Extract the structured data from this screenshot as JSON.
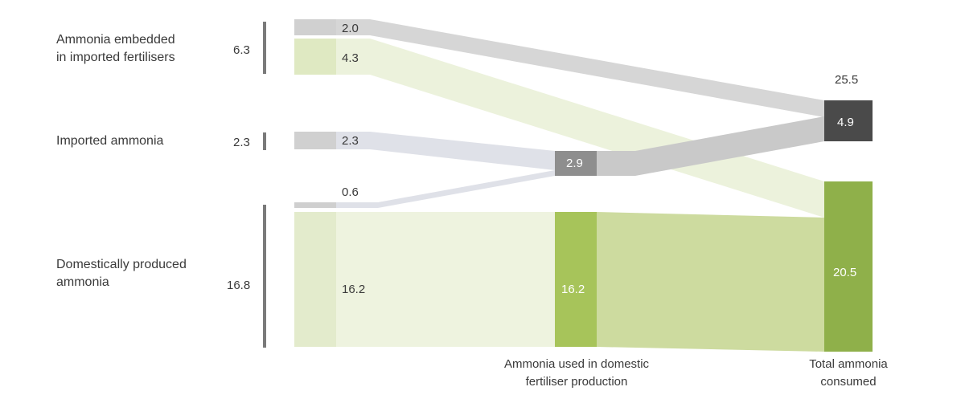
{
  "chart_data": {
    "type": "sankey",
    "colors": {
      "grey_flow": "#cfcfcf",
      "grey_band": "#dadde6",
      "green_flow": "#e6efcf",
      "green_band": "#d9e7b0",
      "green_node": "#a7c45a",
      "green_node_dark": "#8fb04a",
      "dark_node": "#4a4a4a",
      "mid_node": "#8e8e8e",
      "bracket": "#7a7a7a"
    },
    "sources": [
      {
        "line1": "Ammonia embedded",
        "line2": "in imported fertilisers",
        "total": "6.3",
        "total_value": 6.3
      },
      {
        "line1": "Imported ammonia",
        "line2": "",
        "total": "2.3",
        "total_value": 2.3
      },
      {
        "line1": "Domestically produced",
        "line2": "ammonia",
        "total": "16.8",
        "total_value": 16.8
      }
    ],
    "flows": [
      {
        "label": "2.0",
        "value": 2.0,
        "from": "Ammonia embedded in imported fertilisers",
        "to": "Total ammonia consumed"
      },
      {
        "label": "4.3",
        "value": 4.3,
        "from": "Ammonia embedded in imported fertilisers",
        "to": "Total ammonia consumed"
      },
      {
        "label": "2.3",
        "value": 2.3,
        "from": "Imported ammonia",
        "to": "Ammonia used in domestic fertiliser production"
      },
      {
        "label": "0.6",
        "value": 0.6,
        "from": "Domestically produced ammonia",
        "to": "Ammonia used in domestic fertiliser production"
      },
      {
        "label": "16.2",
        "value": 16.2,
        "from": "Domestically produced ammonia",
        "to": "Ammonia used in domestic fertiliser production"
      }
    ],
    "middle": {
      "line1": "Ammonia used in domestic",
      "line2": "fertiliser production",
      "grey_value": "2.9",
      "green_value": "16.2"
    },
    "total": {
      "line1": "Total ammonia",
      "line2": "consumed",
      "total": "25.5",
      "grey_value": "4.9",
      "green_value": "20.5"
    }
  }
}
